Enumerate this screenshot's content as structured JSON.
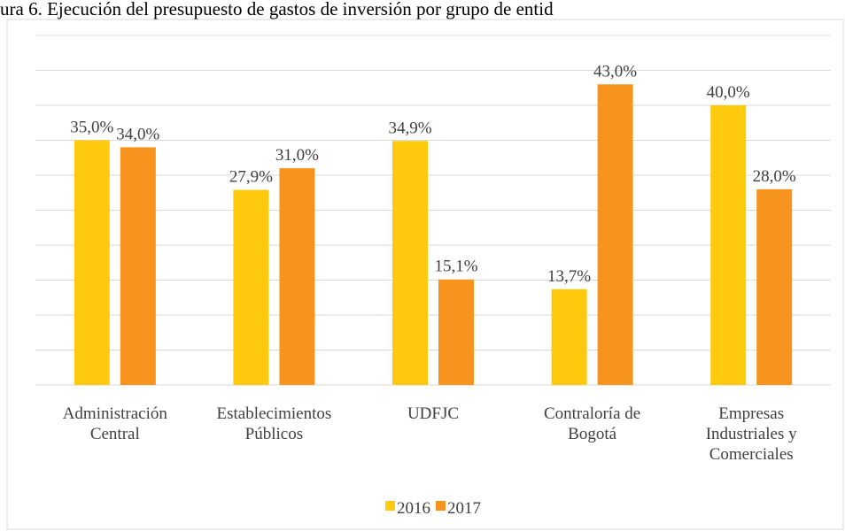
{
  "chart_data": {
    "type": "bar",
    "title": "ura 6. Ejecución del presupuesto de gastos de inversión por grupo de entid",
    "categories": [
      [
        "Administración",
        "Central"
      ],
      [
        "Establecimientos",
        "Públicos"
      ],
      [
        "UDFJC"
      ],
      [
        "Contraloría de",
        "Bogotá"
      ],
      [
        "Empresas",
        "Industriales y",
        "Comerciales"
      ]
    ],
    "series": [
      {
        "name": "2016",
        "color": "#ffc90e",
        "values": [
          35.0,
          27.9,
          34.9,
          13.7,
          40.0
        ],
        "value_labels": [
          "35,0%",
          "27,9%",
          "34,9%",
          "13,7%",
          "40,0%"
        ]
      },
      {
        "name": "2017",
        "color": "#f7941d",
        "values": [
          34.0,
          31.0,
          15.1,
          43.0,
          28.0
        ],
        "value_labels": [
          "34,0%",
          "31,0%",
          "15,1%",
          "43,0%",
          "28,0%"
        ]
      }
    ],
    "ylim": [
      0,
      50
    ],
    "yticks": [
      0,
      5,
      10,
      15,
      20,
      25,
      30,
      35,
      40,
      45,
      50
    ],
    "grid": true,
    "legend": "bottom"
  }
}
